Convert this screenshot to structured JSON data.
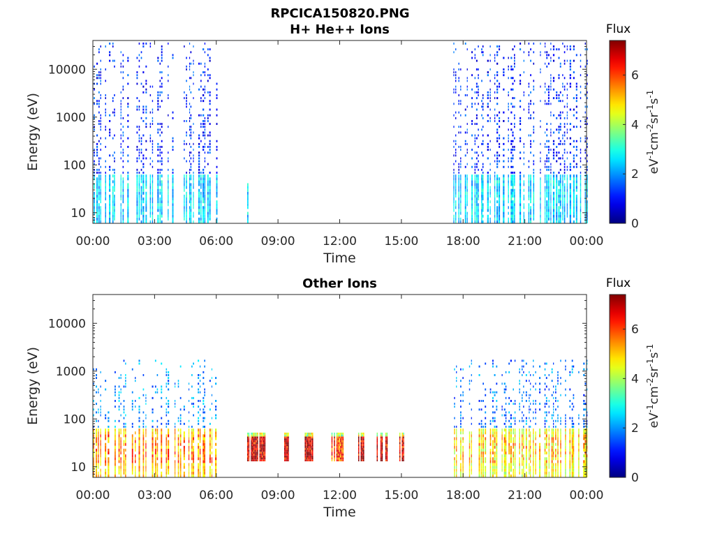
{
  "figure": {
    "title_line1": "RPCICA150820.PNG"
  },
  "chart_data": [
    {
      "type": "heatmap",
      "title": "H+ He++ Ions",
      "xlabel": "Time",
      "ylabel": "Energy (eV)",
      "x_ticks": [
        "00:00",
        "03:00",
        "06:00",
        "09:00",
        "12:00",
        "15:00",
        "18:00",
        "21:00",
        "00:00"
      ],
      "x_range_hours": [
        0,
        24
      ],
      "y_scale": "log",
      "y_range": [
        6,
        40000
      ],
      "y_ticks": [
        {
          "value": 10,
          "label": "10"
        },
        {
          "value": 100,
          "label": "100"
        },
        {
          "value": 1000,
          "label": "1000"
        },
        {
          "value": 10000,
          "label": "10000"
        }
      ],
      "colorbar": {
        "title": "Flux",
        "label": "eV-1cm-2sr-1s-1",
        "range": [
          0,
          7.4
        ],
        "ticks": [
          {
            "value": 0,
            "label": "0"
          },
          {
            "value": 2,
            "label": "2"
          },
          {
            "value": 4,
            "label": "4"
          },
          {
            "value": 6,
            "label": "6"
          }
        ],
        "colormap": "jet"
      },
      "data_intervals": [
        {
          "start_hour": 0.0,
          "end_hour": 6.0,
          "low_energy_flux": 2.5,
          "high_energy_flux": 1.2,
          "max_energy": 35000
        },
        {
          "start_hour": 7.5,
          "end_hour": 7.55,
          "low_energy_flux": 2.5,
          "high_energy_flux": 2.5,
          "max_energy": 40
        },
        {
          "start_hour": 17.5,
          "end_hour": 24.0,
          "low_energy_flux": 2.5,
          "high_energy_flux": 1.2,
          "max_energy": 35000
        }
      ]
    },
    {
      "type": "heatmap",
      "title": "Other Ions",
      "xlabel": "Time",
      "ylabel": "Energy (eV)",
      "x_ticks": [
        "00:00",
        "03:00",
        "06:00",
        "09:00",
        "12:00",
        "15:00",
        "18:00",
        "21:00",
        "00:00"
      ],
      "x_range_hours": [
        0,
        24
      ],
      "y_scale": "log",
      "y_range": [
        6,
        40000
      ],
      "y_ticks": [
        {
          "value": 10,
          "label": "10"
        },
        {
          "value": 100,
          "label": "100"
        },
        {
          "value": 1000,
          "label": "1000"
        },
        {
          "value": 10000,
          "label": "10000"
        }
      ],
      "colorbar": {
        "title": "Flux",
        "label": "eV-1cm-2sr-1s-1",
        "range": [
          0,
          7.4
        ],
        "ticks": [
          {
            "value": 0,
            "label": "0"
          },
          {
            "value": 2,
            "label": "2"
          },
          {
            "value": 4,
            "label": "4"
          },
          {
            "value": 6,
            "label": "6"
          }
        ],
        "colormap": "jet"
      },
      "data_intervals": [
        {
          "start_hour": 0.0,
          "end_hour": 6.0,
          "low_energy_flux": 5.0,
          "high_energy_flux": 2.0,
          "max_energy": 1600
        },
        {
          "start_hour": 17.5,
          "end_hour": 24.0,
          "low_energy_flux": 4.5,
          "high_energy_flux": 1.8,
          "max_energy": 1600
        }
      ],
      "bursts": [
        {
          "start_hour": 7.5,
          "end_hour": 8.4,
          "e_min": 13,
          "e_max": 50,
          "flux": 6.8
        },
        {
          "start_hour": 9.3,
          "end_hour": 9.6,
          "e_min": 13,
          "e_max": 50,
          "flux": 6.8
        },
        {
          "start_hour": 10.3,
          "end_hour": 10.7,
          "e_min": 13,
          "e_max": 50,
          "flux": 6.8
        },
        {
          "start_hour": 11.6,
          "end_hour": 12.2,
          "e_min": 13,
          "e_max": 50,
          "flux": 6.0
        },
        {
          "start_hour": 12.9,
          "end_hour": 13.2,
          "e_min": 13,
          "e_max": 50,
          "flux": 6.8
        },
        {
          "start_hour": 13.8,
          "end_hour": 14.3,
          "e_min": 13,
          "e_max": 50,
          "flux": 6.8
        },
        {
          "start_hour": 14.9,
          "end_hour": 15.1,
          "e_min": 13,
          "e_max": 50,
          "flux": 6.8
        }
      ]
    }
  ]
}
